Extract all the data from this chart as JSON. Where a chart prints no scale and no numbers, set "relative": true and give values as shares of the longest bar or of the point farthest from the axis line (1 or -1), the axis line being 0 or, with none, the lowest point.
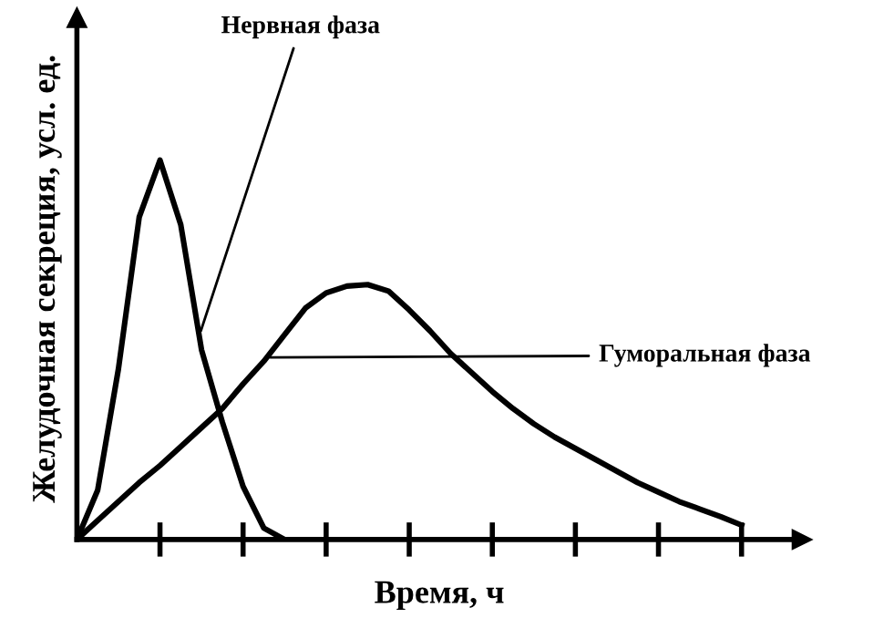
{
  "chart_data": {
    "type": "line",
    "relative": true,
    "xlabel": "Время, ч",
    "ylabel": "Желудочная секреция, усл. ед.",
    "categories": [
      null,
      null,
      null,
      null,
      null,
      null,
      null,
      null,
      null,
      null,
      null,
      null,
      null,
      null,
      null,
      null,
      null,
      null,
      null,
      null,
      null,
      null,
      null,
      null,
      null,
      null,
      null,
      null,
      null,
      null,
      null,
      null,
      null,
      null,
      null
    ],
    "marker": "none",
    "line_style": "solid",
    "series": [
      {
        "color": "#000000",
        "values": [
          0,
          0.13,
          0.45,
          0.85,
          1.0,
          0.83,
          0.5,
          0.31,
          0.14,
          0.03,
          0,
          null,
          null,
          null,
          null,
          null,
          null,
          null,
          null,
          null,
          null,
          null,
          null,
          null,
          null,
          null,
          null,
          null,
          null,
          null,
          null,
          null,
          null,
          null,
          null
        ]
      },
      {
        "color": "#000000",
        "values": [
          0,
          0.05,
          0.1,
          0.15,
          0.195,
          0.245,
          0.295,
          0.345,
          0.41,
          0.47,
          0.54,
          0.61,
          0.65,
          0.668,
          0.672,
          0.655,
          0.605,
          0.55,
          0.49,
          0.44,
          0.39,
          0.345,
          0.305,
          0.27,
          0.24,
          0.21,
          0.18,
          0.15,
          0.125,
          0.1,
          0.08,
          0.06,
          0.038,
          null,
          null
        ]
      }
    ],
    "annotations": [
      "Нервная фаза",
      "Гуморальная фаза"
    ]
  }
}
